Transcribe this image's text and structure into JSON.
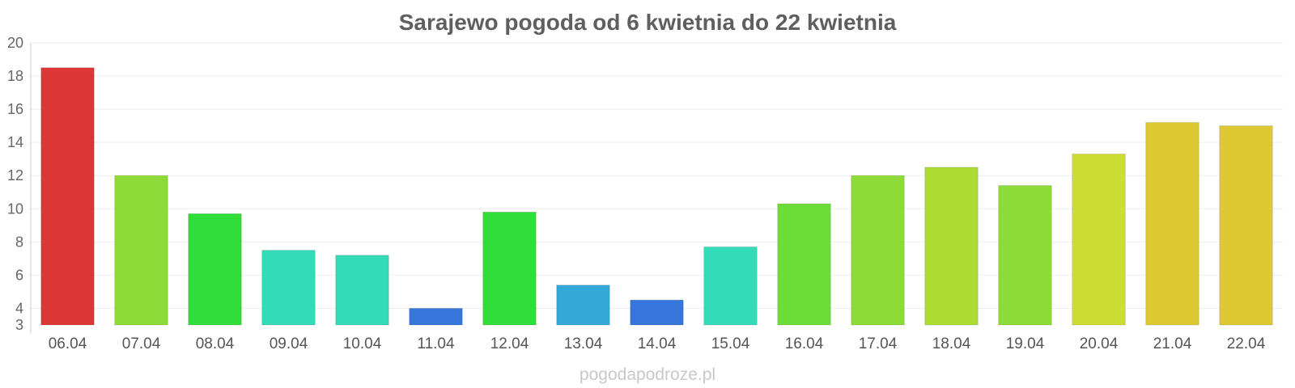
{
  "chart_data": {
    "type": "bar",
    "title": "Sarajewo pogoda od 6 kwietnia do 22 kwietnia",
    "categories": [
      "06.04",
      "07.04",
      "08.04",
      "09.04",
      "10.04",
      "11.04",
      "12.04",
      "13.04",
      "14.04",
      "15.04",
      "16.04",
      "17.04",
      "18.04",
      "19.04",
      "20.04",
      "21.04",
      "22.04"
    ],
    "values": [
      18.5,
      12.0,
      9.7,
      7.5,
      7.2,
      4.0,
      9.8,
      5.4,
      4.5,
      7.7,
      10.3,
      12.0,
      12.5,
      11.4,
      13.3,
      15.2,
      15.0
    ],
    "colors": [
      "#dc3636",
      "#8cdb37",
      "#30dd39",
      "#34dbb9",
      "#34dbb9",
      "#3476dc",
      "#30dd39",
      "#35a8da",
      "#3476dc",
      "#34dbb9",
      "#6cdd37",
      "#8cdb37",
      "#acdb34",
      "#8cdb37",
      "#ccdd34",
      "#dcc934",
      "#dcc934"
    ],
    "ylim": [
      3,
      20
    ],
    "yticks": [
      3,
      4,
      6,
      8,
      10,
      12,
      14,
      16,
      18,
      20
    ],
    "grid": true,
    "xlabel": "",
    "ylabel": ""
  },
  "watermark": "pogodapodroze.pl"
}
